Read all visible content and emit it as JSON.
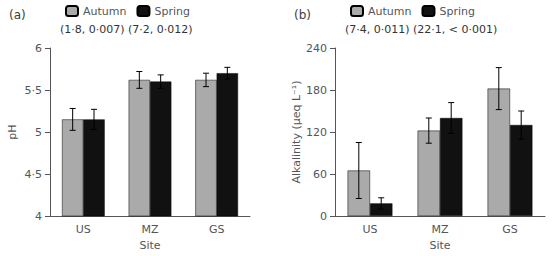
{
  "chart_data": [
    {
      "type": "bar",
      "title": "(a)",
      "xlabel": "Site",
      "ylabel": "pH",
      "categories": [
        "US",
        "MZ",
        "GS"
      ],
      "series": [
        {
          "name": "Autumn",
          "color": "#aaaaaa",
          "values": [
            5.15,
            5.62,
            5.62
          ],
          "errors": [
            0.13,
            0.1,
            0.08
          ]
        },
        {
          "name": "Spring",
          "color": "#111111",
          "values": [
            5.15,
            5.6,
            5.7
          ],
          "errors": [
            0.12,
            0.08,
            0.07
          ]
        }
      ],
      "ylim": [
        4.0,
        6.0
      ],
      "yticks": [
        4,
        {
          "value": 4.5,
          "label": "4·5"
        },
        5,
        {
          "value": 5.5,
          "label": "5·5"
        },
        6
      ],
      "annotation": "(1·8, 0·007) (7·2, 0·012)",
      "legend": "top",
      "grid": false
    },
    {
      "type": "bar",
      "title": "(b)",
      "xlabel": "Site",
      "ylabel": "Alkalinity (μeq L⁻¹)",
      "categories": [
        "US",
        "MZ",
        "GS"
      ],
      "series": [
        {
          "name": "Autumn",
          "color": "#aaaaaa",
          "values": [
            65,
            122,
            182
          ],
          "errors": [
            40,
            18,
            30
          ]
        },
        {
          "name": "Spring",
          "color": "#111111",
          "values": [
            18,
            140,
            130
          ],
          "errors": [
            8,
            22,
            20
          ]
        }
      ],
      "ylim": [
        0,
        240
      ],
      "yticks": [
        0,
        60,
        120,
        180,
        240
      ],
      "annotation": "(7·4, 0·011) (22·1, < 0·001)",
      "legend": "top",
      "grid": false
    }
  ]
}
